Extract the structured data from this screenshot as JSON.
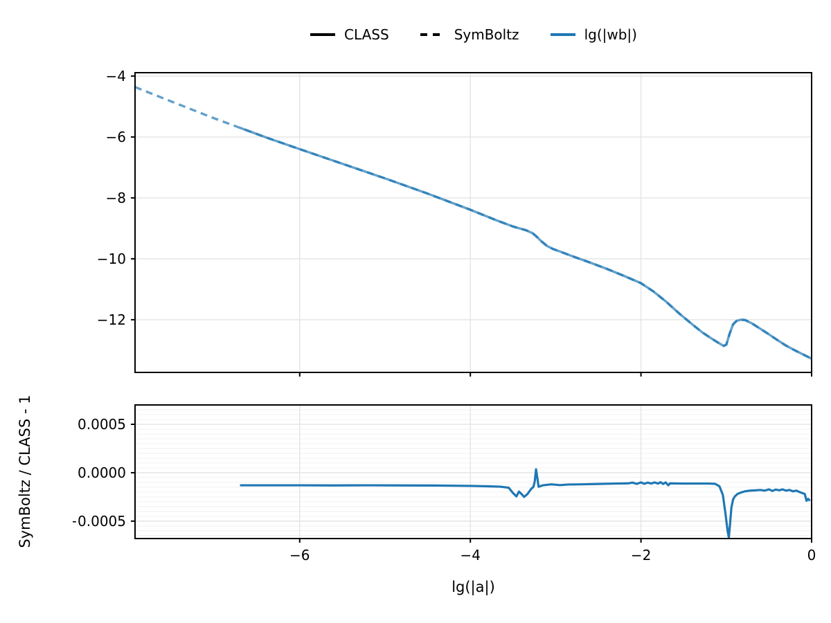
{
  "legend": {
    "items": [
      {
        "label": "CLASS",
        "style": "solid",
        "color": "#000000"
      },
      {
        "label": "SymBoltz",
        "style": "dashed",
        "color": "#000000"
      },
      {
        "label": "lg(|wb|)",
        "style": "solid",
        "color": "#1f77b4"
      }
    ]
  },
  "chart_data": {
    "type": "line",
    "title": "",
    "xlabel": "lg(|a|)",
    "accent_color": "#1f77b4",
    "xlim": [
      -7.93,
      0
    ],
    "xticks": {
      "values": [
        -6,
        -4,
        -2,
        0
      ],
      "labels": [
        "−6",
        "−4",
        "−2",
        "0"
      ]
    },
    "grid": true,
    "legend_position": "top-center",
    "series_data": {
      "wb": [
        [
          -7.93,
          -4.36
        ],
        [
          -7.6,
          -4.73
        ],
        [
          -7.3,
          -5.06
        ],
        [
          -7.0,
          -5.39
        ],
        [
          -6.7,
          -5.7
        ],
        [
          -6.4,
          -6.01
        ],
        [
          -6.0,
          -6.4
        ],
        [
          -5.5,
          -6.88
        ],
        [
          -5.0,
          -7.36
        ],
        [
          -4.5,
          -7.86
        ],
        [
          -4.0,
          -8.39
        ],
        [
          -3.7,
          -8.73
        ],
        [
          -3.5,
          -8.94
        ],
        [
          -3.35,
          -9.06
        ],
        [
          -3.27,
          -9.16
        ],
        [
          -3.22,
          -9.28
        ],
        [
          -3.17,
          -9.42
        ],
        [
          -3.1,
          -9.58
        ],
        [
          -3.03,
          -9.68
        ],
        [
          -2.95,
          -9.76
        ],
        [
          -2.8,
          -9.92
        ],
        [
          -2.6,
          -10.12
        ],
        [
          -2.4,
          -10.33
        ],
        [
          -2.2,
          -10.56
        ],
        [
          -2.0,
          -10.8
        ],
        [
          -1.85,
          -11.08
        ],
        [
          -1.7,
          -11.42
        ],
        [
          -1.55,
          -11.8
        ],
        [
          -1.4,
          -12.15
        ],
        [
          -1.28,
          -12.42
        ],
        [
          -1.16,
          -12.64
        ],
        [
          -1.08,
          -12.78
        ],
        [
          -1.03,
          -12.86
        ],
        [
          -1.0,
          -12.82
        ],
        [
          -0.96,
          -12.45
        ],
        [
          -0.92,
          -12.15
        ],
        [
          -0.88,
          -12.04
        ],
        [
          -0.83,
          -12.0
        ],
        [
          -0.78,
          -12.01
        ],
        [
          -0.7,
          -12.12
        ],
        [
          -0.6,
          -12.3
        ],
        [
          -0.5,
          -12.48
        ],
        [
          -0.4,
          -12.67
        ],
        [
          -0.3,
          -12.85
        ],
        [
          -0.2,
          -13.0
        ],
        [
          -0.1,
          -13.14
        ],
        [
          0.0,
          -13.28
        ]
      ],
      "ratio": [
        [
          -6.7,
          -1.3
        ],
        [
          -6.4,
          -1.3
        ],
        [
          -6.0,
          -1.3
        ],
        [
          -5.6,
          -1.31
        ],
        [
          -5.2,
          -1.3
        ],
        [
          -4.8,
          -1.31
        ],
        [
          -4.4,
          -1.32
        ],
        [
          -4.0,
          -1.36
        ],
        [
          -3.8,
          -1.4
        ],
        [
          -3.65,
          -1.44
        ],
        [
          -3.55,
          -1.55
        ],
        [
          -3.5,
          -2.1
        ],
        [
          -3.46,
          -2.45
        ],
        [
          -3.43,
          -1.95
        ],
        [
          -3.4,
          -2.2
        ],
        [
          -3.37,
          -2.5
        ],
        [
          -3.33,
          -2.2
        ],
        [
          -3.29,
          -1.7
        ],
        [
          -3.26,
          -1.45
        ],
        [
          -3.245,
          -0.9
        ],
        [
          -3.23,
          0.35
        ],
        [
          -3.215,
          -0.5
        ],
        [
          -3.2,
          -1.45
        ],
        [
          -3.15,
          -1.3
        ],
        [
          -3.05,
          -1.2
        ],
        [
          -2.95,
          -1.28
        ],
        [
          -2.85,
          -1.22
        ],
        [
          -2.7,
          -1.2
        ],
        [
          -2.5,
          -1.16
        ],
        [
          -2.3,
          -1.12
        ],
        [
          -2.15,
          -1.1
        ],
        [
          -2.1,
          -1.02
        ],
        [
          -2.05,
          -1.15
        ],
        [
          -2.0,
          -1.0
        ],
        [
          -1.96,
          -1.14
        ],
        [
          -1.92,
          -1.02
        ],
        [
          -1.88,
          -1.12
        ],
        [
          -1.84,
          -1.0
        ],
        [
          -1.8,
          -1.12
        ],
        [
          -1.77,
          -0.98
        ],
        [
          -1.74,
          -1.16
        ],
        [
          -1.71,
          -1.0
        ],
        [
          -1.68,
          -1.3
        ],
        [
          -1.66,
          -1.1
        ],
        [
          -1.5,
          -1.12
        ],
        [
          -1.35,
          -1.12
        ],
        [
          -1.2,
          -1.12
        ],
        [
          -1.13,
          -1.15
        ],
        [
          -1.08,
          -1.4
        ],
        [
          -1.04,
          -2.3
        ],
        [
          -1.01,
          -4.2
        ],
        [
          -0.985,
          -6.0
        ],
        [
          -0.97,
          -6.7
        ],
        [
          -0.955,
          -5.2
        ],
        [
          -0.94,
          -3.6
        ],
        [
          -0.92,
          -2.75
        ],
        [
          -0.9,
          -2.45
        ],
        [
          -0.87,
          -2.2
        ],
        [
          -0.83,
          -2.05
        ],
        [
          -0.78,
          -1.92
        ],
        [
          -0.72,
          -1.85
        ],
        [
          -0.66,
          -1.82
        ],
        [
          -0.6,
          -1.78
        ],
        [
          -0.55,
          -1.85
        ],
        [
          -0.5,
          -1.72
        ],
        [
          -0.46,
          -1.88
        ],
        [
          -0.42,
          -1.74
        ],
        [
          -0.38,
          -1.82
        ],
        [
          -0.34,
          -1.72
        ],
        [
          -0.3,
          -1.85
        ],
        [
          -0.26,
          -1.78
        ],
        [
          -0.22,
          -1.92
        ],
        [
          -0.18,
          -1.85
        ],
        [
          -0.14,
          -2.0
        ],
        [
          -0.11,
          -2.1
        ],
        [
          -0.08,
          -2.2
        ],
        [
          -0.06,
          -2.9
        ],
        [
          -0.04,
          -2.7
        ],
        [
          -0.02,
          -2.9
        ]
      ]
    },
    "panels": [
      {
        "name": "wb-panel",
        "ylabel": "",
        "ylim": [
          -13.73,
          -3.89
        ],
        "yticks": {
          "values": [
            -4,
            -6,
            -8,
            -10,
            -12
          ],
          "labels": [
            "−4",
            "−6",
            "−8",
            "−10",
            "−12"
          ]
        },
        "show_x_tick_labels": false,
        "series": [
          {
            "name": "CLASS",
            "points": "wb",
            "xmin": -6.7,
            "style": "solid",
            "color": "#1f77b4",
            "opacity": 0.7,
            "width": 3.4
          },
          {
            "name": "SymBoltz",
            "points": "wb",
            "style": "dashed",
            "color": "#1f77b4",
            "opacity": 0.7,
            "width": 3.4
          }
        ]
      },
      {
        "name": "ratio-panel",
        "ylabel": "SymBoltz / CLASS - 1",
        "ylim": [
          -0.00068,
          0.0007
        ],
        "yticks": {
          "values": [
            0.0005,
            0.0,
            -0.0005
          ],
          "labels": [
            "0.0005",
            "0.0000",
            "−0.0005"
          ]
        },
        "minor_y_step": 5e-05,
        "show_x_tick_labels": true,
        "series": [
          {
            "name": "SymBoltz / CLASS - 1",
            "points": "ratio",
            "style": "solid",
            "color": "#1f77b4",
            "opacity": 1,
            "width": 3.2,
            "y_scale": 0.0001
          }
        ]
      }
    ]
  }
}
